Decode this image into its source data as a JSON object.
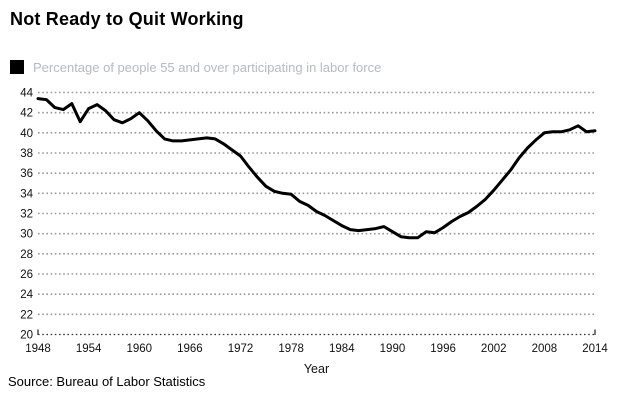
{
  "title": "Not Ready to Quit Working",
  "legend": {
    "label": "Percentage of people 55 and over participating in labor force",
    "swatch_color": "#000000"
  },
  "xlabel": "Year",
  "source": "Source: Bureau of Labor Statistics",
  "chart_data": {
    "type": "line",
    "title": "Not Ready to Quit Working",
    "series_name": "Percentage of people 55 and over participating in labor force",
    "xlabel": "Year",
    "ylabel": "",
    "xlim": [
      1948,
      2014
    ],
    "ylim": [
      20,
      44
    ],
    "xticks": [
      1948,
      1954,
      1960,
      1966,
      1972,
      1978,
      1984,
      1990,
      1996,
      2002,
      2008,
      2014
    ],
    "yticks": [
      44,
      42,
      40,
      38,
      36,
      34,
      32,
      30,
      28,
      26,
      24,
      22,
      20
    ],
    "grid": "dotted-horizontal",
    "legend_position": "top-left",
    "line_color": "#000000",
    "grid_color": "#9a9a9a",
    "axis_color": "#333333",
    "x": [
      1948,
      1949,
      1950,
      1951,
      1952,
      1953,
      1954,
      1955,
      1956,
      1957,
      1958,
      1959,
      1960,
      1961,
      1962,
      1963,
      1964,
      1965,
      1966,
      1967,
      1968,
      1969,
      1970,
      1971,
      1972,
      1973,
      1974,
      1975,
      1976,
      1977,
      1978,
      1979,
      1980,
      1981,
      1982,
      1983,
      1984,
      1985,
      1986,
      1987,
      1988,
      1989,
      1990,
      1991,
      1992,
      1993,
      1994,
      1995,
      1996,
      1997,
      1998,
      1999,
      2000,
      2001,
      2002,
      2003,
      2004,
      2005,
      2006,
      2007,
      2008,
      2009,
      2010,
      2011,
      2012,
      2013,
      2014
    ],
    "values": [
      43.4,
      43.3,
      42.5,
      42.3,
      42.9,
      41.1,
      42.4,
      42.8,
      42.2,
      41.3,
      41.0,
      41.4,
      42.0,
      41.2,
      40.2,
      39.4,
      39.2,
      39.2,
      39.3,
      39.4,
      39.5,
      39.4,
      38.9,
      38.3,
      37.7,
      36.6,
      35.6,
      34.7,
      34.2,
      34.0,
      33.9,
      33.2,
      32.8,
      32.2,
      31.8,
      31.3,
      30.8,
      30.4,
      30.3,
      30.4,
      30.5,
      30.7,
      30.2,
      29.7,
      29.6,
      29.6,
      30.2,
      30.1,
      30.6,
      31.2,
      31.7,
      32.1,
      32.7,
      33.4,
      34.3,
      35.3,
      36.3,
      37.5,
      38.5,
      39.3,
      40.0,
      40.1,
      40.1,
      40.3,
      40.7,
      40.1,
      40.2
    ],
    "source": "Source: Bureau of Labor Statistics"
  }
}
